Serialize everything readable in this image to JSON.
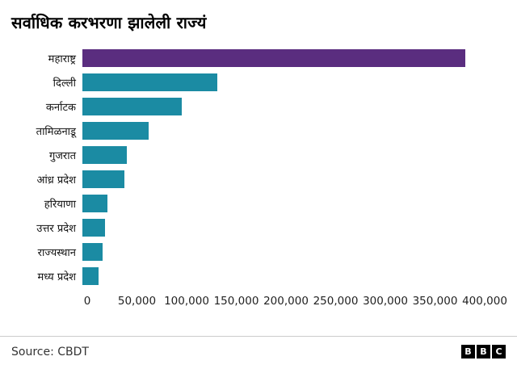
{
  "title": "सर्वाधिक करभरणा झालेली राज्यं",
  "chart_data": {
    "type": "bar",
    "orientation": "horizontal",
    "title": "सर्वाधिक करभरणा झालेली राज्यं",
    "categories": [
      "महाराष्ट्र",
      "दिल्ली",
      "कर्नाटक",
      "तामिळनाडू",
      "गुजरात",
      "आंध्र प्रदेश",
      "हरियाणा",
      "उत्तर प्रदेश",
      "राज्यस्थान",
      "मध्य प्रदेश"
    ],
    "values": [
      385000,
      136000,
      100000,
      67000,
      45000,
      42000,
      25000,
      23000,
      20000,
      16000
    ],
    "x_ticks": [
      "0",
      "50,000",
      "100,000",
      "150,000",
      "200,000",
      "250,000",
      "300,000",
      "350,000",
      "400,000"
    ],
    "x_tick_values": [
      0,
      50000,
      100000,
      150000,
      200000,
      250000,
      300000,
      350000,
      400000
    ],
    "xlim": [
      0,
      400000
    ],
    "xlabel": "",
    "ylabel": "",
    "grid": false,
    "legend": false,
    "highlight_index": 0,
    "colors": {
      "highlight": "#5a2d7f",
      "default": "#1b8ba3"
    }
  },
  "footer": {
    "source": "Source: CBDT",
    "logo_letters": [
      "B",
      "B",
      "C"
    ]
  }
}
